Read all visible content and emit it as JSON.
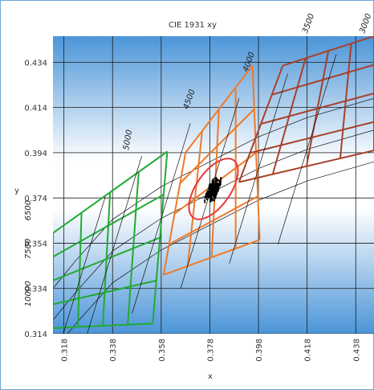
{
  "chart_data": {
    "type": "line",
    "title": "CIE 1931 xy",
    "xlabel": "x",
    "ylabel": "y",
    "xlim": [
      0.3135,
      0.4455
    ],
    "ylim": [
      0.314,
      0.4455
    ],
    "xticks": [
      "0.318",
      "0.338",
      "0.358",
      "0.378",
      "0.398",
      "0.418",
      "0.438"
    ],
    "yticks": [
      "0.314",
      "0.334",
      "0.354",
      "0.374",
      "0.394",
      "0.414",
      "0.434"
    ],
    "grid": true,
    "cct_labels": [
      "3000",
      "3500",
      "4000",
      "4500",
      "5000",
      "6500",
      "7500",
      "10000"
    ],
    "planckian_locus": [
      [
        0.3135,
        0.32
      ],
      [
        0.323,
        0.3325
      ],
      [
        0.338,
        0.3505
      ],
      [
        0.358,
        0.365
      ],
      [
        0.378,
        0.376
      ],
      [
        0.398,
        0.387
      ],
      [
        0.418,
        0.3955
      ],
      [
        0.4455,
        0.404
      ]
    ],
    "ansi_quadrangles": [
      {
        "name": "5000K",
        "color": "#22aa33",
        "corners": [
          [
            0.3135,
            0.3165
          ],
          [
            0.3135,
            0.3585
          ],
          [
            0.3605,
            0.3945
          ],
          [
            0.3545,
            0.3185
          ]
        ]
      },
      {
        "name": "4000K",
        "color": "#ee7a2a",
        "corners": [
          [
            0.359,
            0.34
          ],
          [
            0.368,
            0.394
          ],
          [
            0.3955,
            0.4325
          ],
          [
            0.3985,
            0.3555
          ]
        ]
      },
      {
        "name": "3000K",
        "color": "#a8402a",
        "corners": [
          [
            0.39,
            0.381
          ],
          [
            0.408,
            0.4325
          ],
          [
            0.4455,
            0.4455
          ],
          [
            0.4455,
            0.395
          ]
        ]
      }
    ],
    "ellipse": {
      "center": [
        0.3795,
        0.378
      ],
      "semi_axes": [
        0.007,
        0.0155
      ],
      "rotation_deg": 35,
      "color": "#e83a3a"
    },
    "measurements": {
      "center": [
        0.3795,
        0.378
      ],
      "spread": [
        0.0022,
        0.0065
      ],
      "color": "#000000"
    }
  }
}
